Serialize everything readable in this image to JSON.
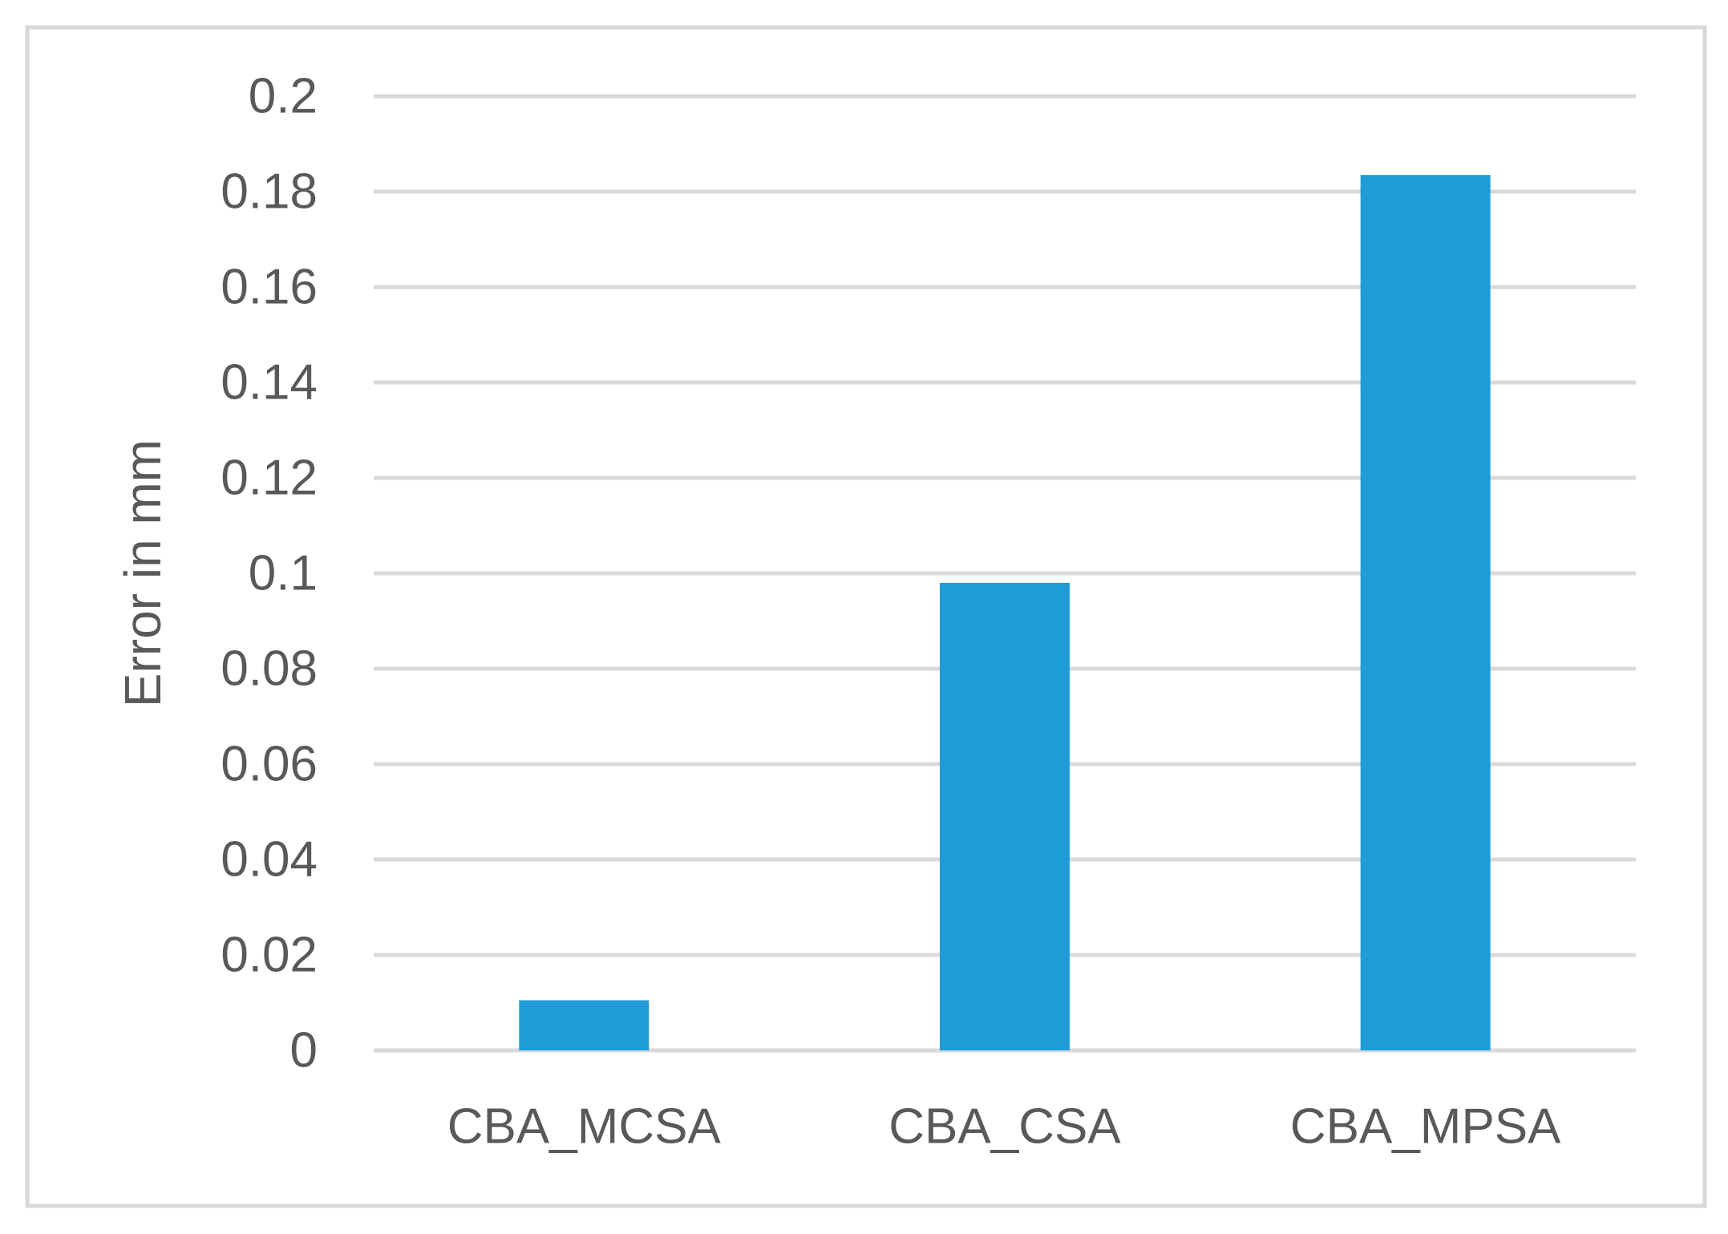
{
  "chart_data": {
    "type": "bar",
    "title": "",
    "xlabel": "",
    "ylabel": "Error in mm",
    "categories": [
      "CBA_MCSA",
      "CBA_CSA",
      "CBA_MPSA"
    ],
    "values": [
      0.0105,
      0.098,
      0.1835
    ],
    "ylim": [
      0,
      0.2
    ],
    "yticks": [
      "0",
      "0.02",
      "0.04",
      "0.06",
      "0.08",
      "0.1",
      "0.12",
      "0.14",
      "0.16",
      "0.18",
      "0.2"
    ],
    "ytick_values": [
      0,
      0.02,
      0.04,
      0.06,
      0.08,
      0.1,
      0.12,
      0.14,
      0.16,
      0.18,
      0.2
    ],
    "grid": true,
    "legend": "none",
    "bar_color": "#1f9bd7",
    "grid_color": "#d9d9d9",
    "text_color": "#595959",
    "border_color": "#d9d9d9"
  }
}
